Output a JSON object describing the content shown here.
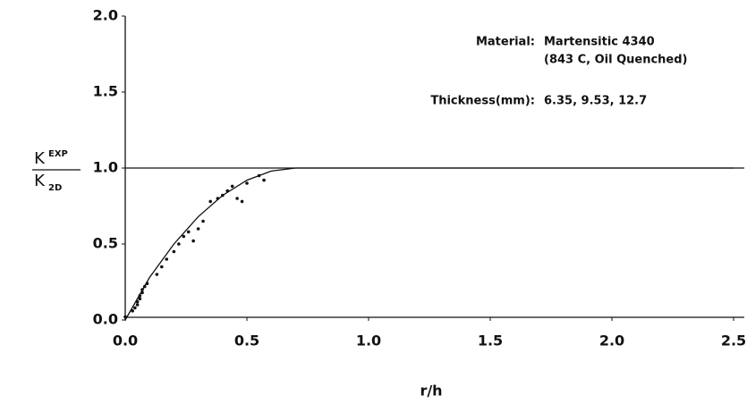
{
  "chart_data": {
    "type": "scatter",
    "x_label": "r/h",
    "y_label": {
      "numerator": "K",
      "numerator_sup": "EXP",
      "denominator": "K",
      "denominator_sub": "2D"
    },
    "annotations": {
      "material_label": "Material:",
      "material": "Martensitic 4340",
      "treatment": "(843 C, Oil Quenched)",
      "thickness_label": "Thickness(mm):",
      "thickness": "6.35, 9.53, 12.7"
    },
    "xlim": [
      0,
      2.5
    ],
    "ylim": [
      0,
      2
    ],
    "xticks": [
      {
        "value": 0,
        "label": "0.0"
      },
      0.5,
      {
        "value": 1,
        "label": "1.0"
      },
      1.5,
      {
        "value": 2,
        "label": "2.0"
      },
      2.5
    ],
    "yticks": [
      {
        "value": 0,
        "label": "0.0"
      },
      0.5,
      {
        "value": 1,
        "label": "1.0"
      },
      1.5,
      {
        "value": 2,
        "label": "2.0"
      }
    ],
    "reference_line": 1,
    "color": "#111111",
    "points": {
      "x": [
        0.0,
        0.03,
        0.04,
        0.05,
        0.05,
        0.06,
        0.06,
        0.07,
        0.07,
        0.08,
        0.09,
        0.13,
        0.15,
        0.17,
        0.2,
        0.22,
        0.24,
        0.26,
        0.28,
        0.3,
        0.32,
        0.35,
        0.38,
        0.4,
        0.42,
        0.44,
        0.46,
        0.48,
        0.5,
        0.55,
        0.57
      ],
      "y": [
        0.02,
        0.06,
        0.08,
        0.1,
        0.12,
        0.14,
        0.16,
        0.18,
        0.2,
        0.22,
        0.24,
        0.3,
        0.35,
        0.4,
        0.45,
        0.5,
        0.55,
        0.58,
        0.52,
        0.6,
        0.65,
        0.78,
        0.8,
        0.82,
        0.85,
        0.88,
        0.8,
        0.78,
        0.9,
        0.95,
        0.92
      ]
    },
    "curve": {
      "x": [
        0,
        0.1,
        0.2,
        0.3,
        0.4,
        0.5,
        0.6,
        0.7,
        0.8,
        1.0,
        2.5
      ],
      "y": [
        0,
        0.28,
        0.5,
        0.68,
        0.82,
        0.92,
        0.98,
        1.0,
        1.0,
        1.0,
        1.0
      ]
    }
  }
}
